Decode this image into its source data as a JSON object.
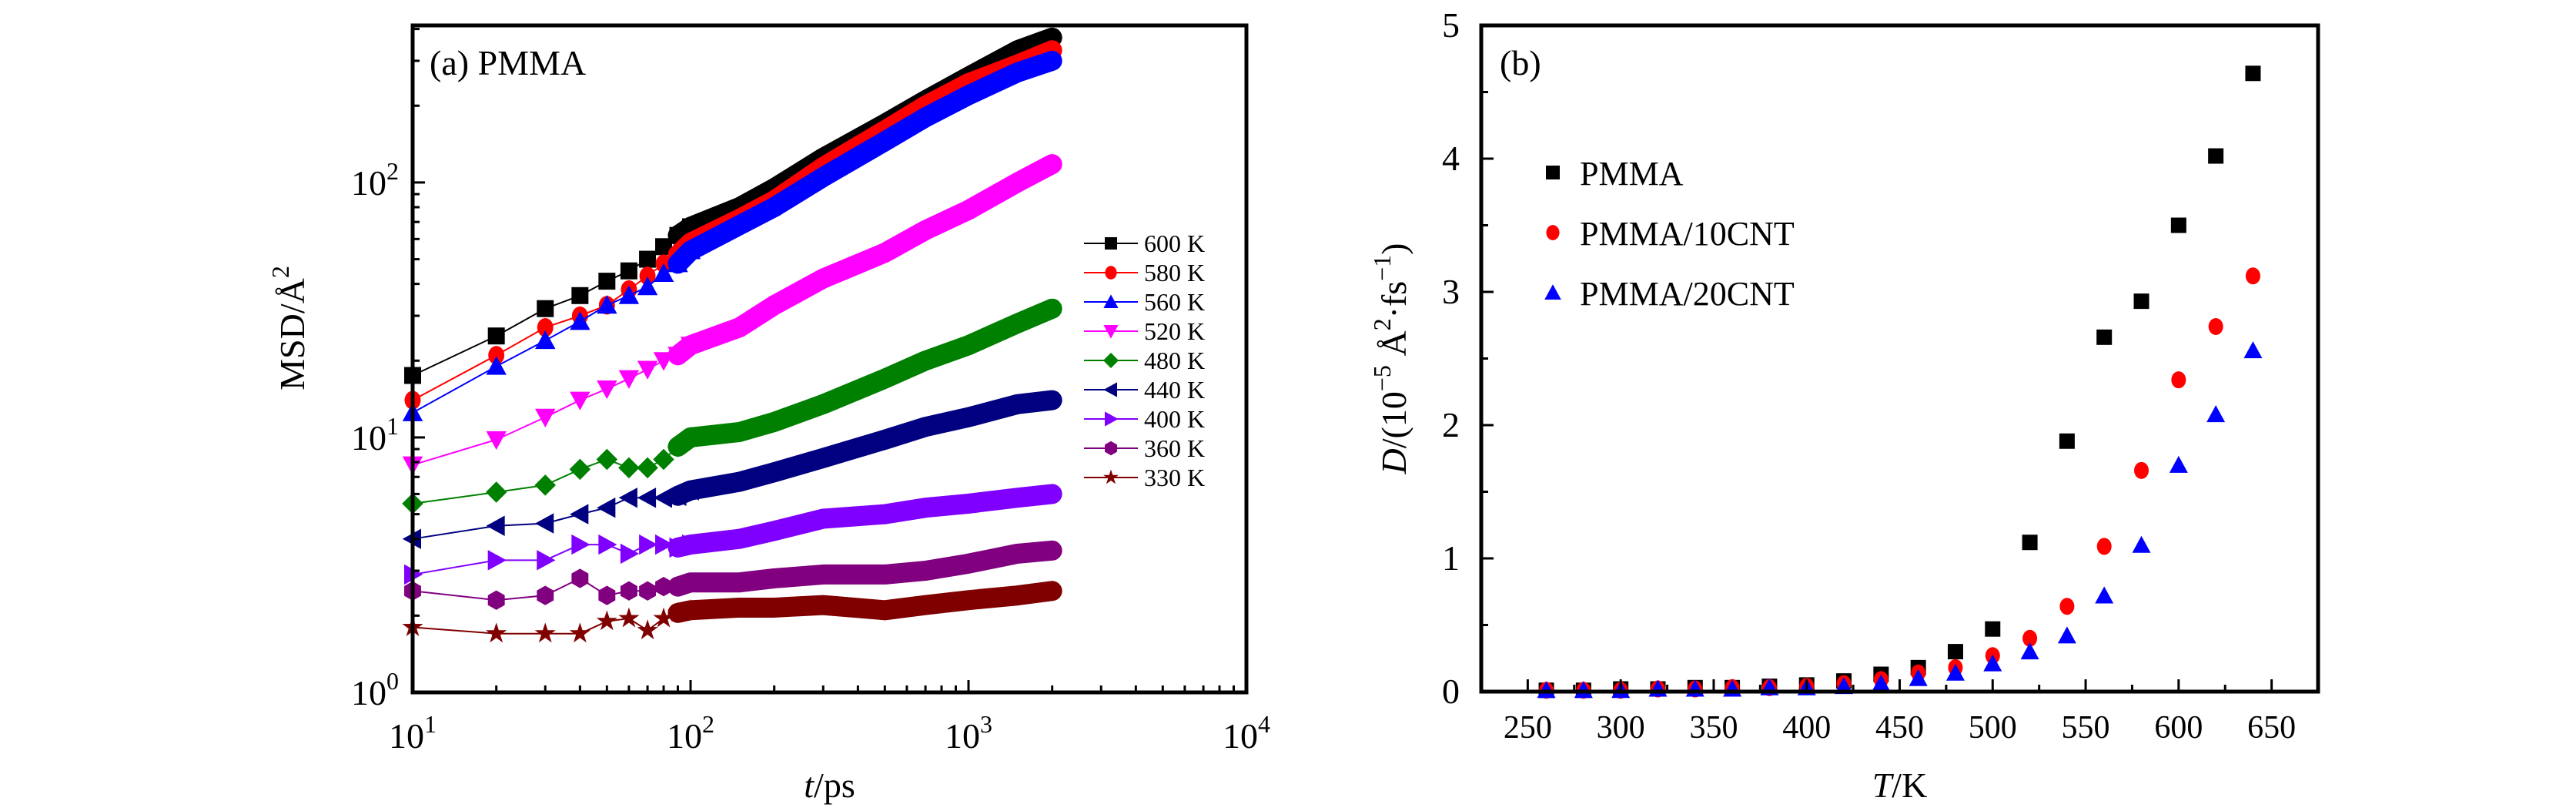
{
  "chart_data": [
    {
      "id": "a",
      "type": "line",
      "panel_label": "(a) PMMA",
      "title": "",
      "xlabel": "t/ps",
      "ylabel": "MSD/Å²",
      "xscale": "log",
      "yscale": "log",
      "xlim": [
        10,
        10000
      ],
      "ylim": [
        1,
        413
      ],
      "xticks": [
        {
          "v": 10,
          "base": "10",
          "exp": "1"
        },
        {
          "v": 100,
          "base": "10",
          "exp": "2"
        },
        {
          "v": 1000,
          "base": "10",
          "exp": "3"
        },
        {
          "v": 10000,
          "base": "10",
          "exp": "4"
        }
      ],
      "yticks": [
        {
          "v": 1,
          "base": "10",
          "exp": "0"
        },
        {
          "v": 10,
          "base": "10",
          "exp": "1"
        },
        {
          "v": 100,
          "base": "10",
          "exp": "2"
        }
      ],
      "legend_position": "right-middle",
      "grid": false,
      "x": [
        10,
        20,
        30,
        40,
        50,
        60,
        70,
        80,
        90,
        100,
        150,
        200,
        300,
        500,
        700,
        1000,
        1500,
        2000
      ],
      "series": [
        {
          "name": "600 K",
          "color": "#000000",
          "marker": "square",
          "values": [
            17.5,
            25,
            32,
            36,
            41,
            45,
            50,
            56,
            62,
            67,
            80,
            95,
            125,
            170,
            210,
            260,
            330,
            370
          ]
        },
        {
          "name": "580 K",
          "color": "#ff0000",
          "marker": "circle",
          "values": [
            14,
            21,
            27,
            30,
            33,
            38,
            43,
            48,
            52,
            58,
            72,
            85,
            115,
            160,
            200,
            245,
            290,
            330
          ]
        },
        {
          "name": "560 K",
          "color": "#0000ff",
          "marker": "triangle-up",
          "values": [
            12.5,
            19,
            24,
            28.5,
            33,
            36,
            39,
            44,
            48,
            54,
            68,
            80,
            105,
            145,
            180,
            220,
            270,
            300
          ]
        },
        {
          "name": "520 K",
          "color": "#ff00ff",
          "marker": "triangle-down",
          "values": [
            7.8,
            9.8,
            12,
            14,
            15.5,
            17,
            18.5,
            20,
            21,
            23,
            27,
            33,
            42,
            53,
            65,
            78,
            100,
            118
          ]
        },
        {
          "name": "480 K",
          "color": "#008000",
          "marker": "diamond",
          "values": [
            5.5,
            6.1,
            6.5,
            7.5,
            8.2,
            7.6,
            7.6,
            8.2,
            9.2,
            10,
            10.5,
            11.5,
            13.5,
            17,
            20,
            23,
            28,
            32
          ]
        },
        {
          "name": "440 K",
          "color": "#000080",
          "marker": "triangle-left",
          "values": [
            4.0,
            4.5,
            4.6,
            5.0,
            5.3,
            5.8,
            5.8,
            5.8,
            5.9,
            6.2,
            6.7,
            7.3,
            8.3,
            9.8,
            11,
            12,
            13.5,
            14
          ]
        },
        {
          "name": "400 K",
          "color": "#8000ff",
          "marker": "triangle-right",
          "values": [
            2.9,
            3.3,
            3.3,
            3.8,
            3.8,
            3.5,
            3.8,
            3.8,
            3.7,
            3.8,
            4.0,
            4.3,
            4.8,
            5.0,
            5.3,
            5.5,
            5.8,
            6.0
          ]
        },
        {
          "name": "360 K",
          "color": "#800080",
          "marker": "hexagon",
          "values": [
            2.5,
            2.3,
            2.4,
            2.8,
            2.4,
            2.5,
            2.5,
            2.6,
            2.6,
            2.7,
            2.7,
            2.8,
            2.9,
            2.9,
            3.0,
            3.2,
            3.5,
            3.6
          ]
        },
        {
          "name": "330 K",
          "color": "#800000",
          "marker": "star",
          "values": [
            1.8,
            1.7,
            1.7,
            1.7,
            1.9,
            1.95,
            1.75,
            1.95,
            2.05,
            2.1,
            2.15,
            2.15,
            2.2,
            2.1,
            2.2,
            2.3,
            2.4,
            2.5
          ]
        }
      ]
    },
    {
      "id": "b",
      "type": "scatter",
      "panel_label": "(b)",
      "title": "",
      "xlabel": "T/K",
      "ylabel": "D/(10⁻⁵ Å²·fs⁻¹)",
      "xlim": [
        225,
        675
      ],
      "ylim": [
        0,
        5
      ],
      "xticks": [
        250,
        300,
        350,
        400,
        450,
        500,
        550,
        600,
        650
      ],
      "yticks": [
        0,
        1,
        2,
        3,
        4,
        5
      ],
      "legend_position": "upper-left",
      "grid": false,
      "x": [
        260,
        280,
        300,
        320,
        340,
        360,
        380,
        400,
        420,
        440,
        460,
        480,
        500,
        520,
        540,
        560,
        580,
        600,
        620,
        640
      ],
      "series": [
        {
          "name": "PMMA",
          "color": "#000000",
          "marker": "square",
          "values": [
            0.01,
            0.01,
            0.02,
            0.02,
            0.03,
            0.03,
            0.04,
            0.05,
            0.08,
            0.13,
            0.18,
            0.3,
            0.47,
            1.12,
            1.88,
            2.66,
            2.93,
            3.5,
            4.02,
            4.64
          ]
        },
        {
          "name": "PMMA/10CNT",
          "color": "#ff0000",
          "marker": "circle",
          "values": [
            0.01,
            0.01,
            0.01,
            0.02,
            0.02,
            0.03,
            0.03,
            0.04,
            0.06,
            0.09,
            0.14,
            0.18,
            0.27,
            0.4,
            0.64,
            1.09,
            1.66,
            2.34,
            2.74,
            3.12
          ]
        },
        {
          "name": "PMMA/20CNT",
          "color": "#0000ff",
          "marker": "triangle-up",
          "values": [
            0.01,
            0.01,
            0.01,
            0.02,
            0.02,
            0.02,
            0.03,
            0.03,
            0.04,
            0.06,
            0.1,
            0.14,
            0.21,
            0.3,
            0.42,
            0.72,
            1.1,
            1.7,
            2.08,
            2.56
          ]
        }
      ]
    }
  ]
}
